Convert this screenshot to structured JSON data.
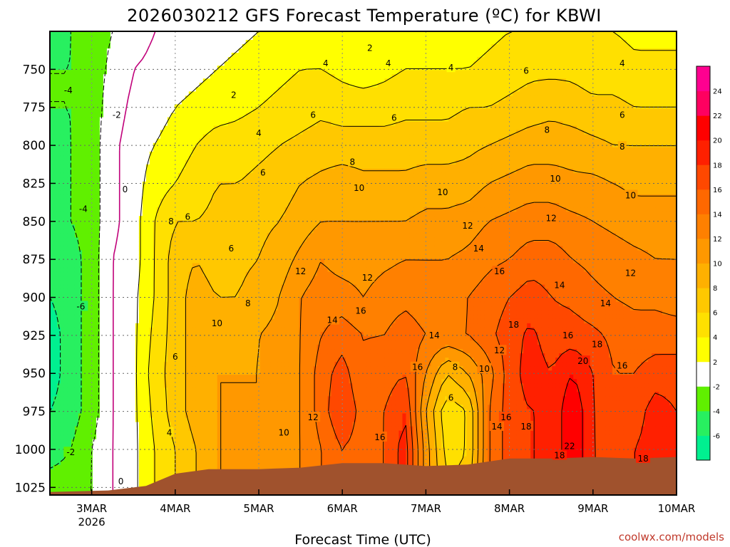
{
  "chart_data": {
    "type": "heatmap",
    "title": "2026030212 GFS Forecast Temperature (ºC) for KBWI",
    "xlabel": "Forecast Time (UTC)",
    "ylabel": "",
    "credit": "coolwx.com/models",
    "x_ticks": [
      {
        "label": "3MAR",
        "sub": "2026",
        "day": 3.0
      },
      {
        "label": "4MAR",
        "sub": "",
        "day": 4.0
      },
      {
        "label": "5MAR",
        "sub": "",
        "day": 5.0
      },
      {
        "label": "6MAR",
        "sub": "",
        "day": 6.0
      },
      {
        "label": "7MAR",
        "sub": "",
        "day": 7.0
      },
      {
        "label": "8MAR",
        "sub": "",
        "day": 8.0
      },
      {
        "label": "9MAR",
        "sub": "",
        "day": 9.0
      },
      {
        "label": "10MAR",
        "sub": "",
        "day": 10.0
      }
    ],
    "xlim": [
      2.5,
      10.0
    ],
    "y_ticks": [
      "750",
      "775",
      "800",
      "825",
      "850",
      "875",
      "900",
      "925",
      "950",
      "975",
      "1000",
      "1025"
    ],
    "ylim": [
      1030,
      725
    ],
    "colorbar": {
      "levels": [
        -8,
        -6,
        -4,
        -2,
        2,
        4,
        6,
        8,
        10,
        12,
        14,
        16,
        18,
        20,
        22,
        24,
        26
      ],
      "labels": [
        "24",
        "22",
        "20",
        "18",
        "16",
        "14",
        "12",
        "10",
        "8",
        "6",
        "4",
        "2",
        "-2",
        "-4",
        "-6"
      ],
      "colors": [
        "#00f090",
        "#28f060",
        "#60f000",
        "#ffffff",
        "#ffff00",
        "#ffe000",
        "#ffc800",
        "#ffb000",
        "#ff9800",
        "#ff8000",
        "#ff6800",
        "#ff4800",
        "#ff2000",
        "#ff0000",
        "#ff0060",
        "#ff0090"
      ]
    },
    "surface": {
      "color": "#a0522d",
      "points": [
        [
          2.5,
          1028
        ],
        [
          3.2,
          1027
        ],
        [
          3.65,
          1024
        ],
        [
          4.0,
          1016
        ],
        [
          4.4,
          1013
        ],
        [
          5.0,
          1013
        ],
        [
          5.5,
          1012
        ],
        [
          6.0,
          1009
        ],
        [
          6.5,
          1009
        ],
        [
          7.0,
          1011
        ],
        [
          7.5,
          1010
        ],
        [
          8.0,
          1006
        ],
        [
          8.5,
          1006
        ],
        [
          9.0,
          1005
        ],
        [
          9.5,
          1006
        ],
        [
          10.0,
          1005
        ]
      ]
    },
    "temperature_field": {
      "pressures": [
        725,
        750,
        775,
        800,
        825,
        850,
        875,
        900,
        925,
        950,
        975,
        1000,
        1025
      ],
      "series": [
        {
          "day": 2.5,
          "temps": [
            -5,
            -4,
            -4,
            -5,
            -5,
            -5,
            -6,
            -6,
            -7,
            -7,
            -6,
            -5,
            -3
          ]
        },
        {
          "day": 2.75,
          "temps": [
            -4,
            -4,
            -4,
            -4,
            -4,
            -4,
            -5,
            -5,
            -5,
            -5,
            -5,
            -4,
            -3
          ]
        },
        {
          "day": 3.0,
          "temps": [
            -3,
            -3,
            -3,
            -3,
            -3,
            -3,
            -3,
            -3,
            -3,
            -3,
            -3,
            -2,
            -2
          ]
        },
        {
          "day": 3.25,
          "temps": [
            -2,
            -1.5,
            -1,
            -0.5,
            -0.5,
            -0.5,
            0,
            0,
            0,
            0,
            0,
            0,
            0
          ]
        },
        {
          "day": 3.5,
          "temps": [
            -1,
            0,
            0.5,
            1,
            1,
            1,
            1,
            1.5,
            1.5,
            1.5,
            1.5,
            1.5,
            1.5
          ]
        },
        {
          "day": 3.75,
          "temps": [
            0,
            0.5,
            1,
            2,
            3,
            4,
            4,
            4,
            4.5,
            5,
            4.5,
            4,
            4
          ]
        },
        {
          "day": 4.0,
          "temps": [
            0.5,
            1,
            2,
            3,
            4,
            6,
            7,
            7,
            7,
            7,
            7,
            6,
            6
          ]
        },
        {
          "day": 4.25,
          "temps": [
            1,
            1.5,
            2.5,
            4,
            5,
            6,
            8,
            9,
            9,
            9,
            9,
            8,
            8
          ]
        },
        {
          "day": 4.5,
          "temps": [
            1,
            2,
            3,
            5,
            6,
            6.5,
            7,
            8,
            9,
            10,
            10,
            10,
            10
          ]
        },
        {
          "day": 4.75,
          "temps": [
            1.5,
            2.5,
            3.5,
            5,
            6,
            7,
            7.5,
            8,
            9,
            10,
            10,
            10,
            10
          ]
        },
        {
          "day": 5.0,
          "temps": [
            2,
            3,
            4,
            5.5,
            6.5,
            7.5,
            8,
            9,
            10,
            10,
            10,
            10,
            10
          ]
        },
        {
          "day": 5.25,
          "temps": [
            2.5,
            3.5,
            4.5,
            6,
            7,
            8,
            9,
            10,
            10.5,
            11,
            11,
            11,
            11
          ]
        },
        {
          "day": 5.5,
          "temps": [
            3,
            4,
            5,
            6.5,
            8,
            9,
            10.5,
            12,
            12,
            12,
            12,
            12,
            12
          ]
        },
        {
          "day": 5.75,
          "temps": [
            3,
            4,
            5.5,
            7,
            8.5,
            10,
            12,
            13,
            14,
            15,
            15,
            14,
            14
          ]
        },
        {
          "day": 6.0,
          "temps": [
            2.5,
            3.5,
            5,
            7,
            9,
            10,
            11,
            13,
            15,
            17,
            18,
            16,
            16
          ]
        },
        {
          "day": 6.25,
          "temps": [
            2,
            3,
            5,
            7,
            8.5,
            10,
            11,
            12,
            14,
            14,
            15,
            15,
            15
          ]
        },
        {
          "day": 6.5,
          "temps": [
            2.5,
            3.5,
            5,
            7,
            8.5,
            10,
            11.5,
            13,
            14,
            15,
            16,
            16,
            16
          ]
        },
        {
          "day": 6.75,
          "temps": [
            3,
            4,
            5.5,
            7,
            8.5,
            10,
            12,
            13.5,
            15,
            16,
            18,
            19,
            19
          ]
        },
        {
          "day": 7.0,
          "temps": [
            3,
            4,
            5.5,
            7,
            9,
            10.5,
            12,
            13,
            14,
            12,
            10,
            11,
            11
          ]
        },
        {
          "day": 7.25,
          "temps": [
            3,
            4,
            5.5,
            7,
            9,
            10.5,
            12,
            13,
            13.5,
            8,
            4.5,
            5,
            6
          ]
        },
        {
          "day": 7.5,
          "temps": [
            3,
            4,
            6,
            7.5,
            9,
            11,
            12.5,
            14,
            14,
            10,
            6,
            6,
            7
          ]
        },
        {
          "day": 7.75,
          "temps": [
            3.5,
            4.5,
            6,
            8,
            10,
            12,
            13.5,
            15,
            15.5,
            13,
            14,
            14,
            14
          ]
        },
        {
          "day": 8.0,
          "temps": [
            4,
            5,
            6.5,
            8.5,
            10.5,
            12.5,
            14,
            16,
            17,
            17,
            17,
            17,
            17
          ]
        },
        {
          "day": 8.25,
          "temps": [
            4,
            5.5,
            7,
            9,
            11,
            13,
            15,
            17,
            18.5,
            19,
            18,
            18,
            18
          ]
        },
        {
          "day": 8.5,
          "temps": [
            4,
            5.5,
            7.5,
            9,
            11,
            13,
            15,
            16,
            17,
            18,
            18,
            18,
            18
          ]
        },
        {
          "day": 8.75,
          "temps": [
            4,
            5.5,
            7,
            9,
            10.5,
            12.5,
            14,
            15.5,
            17,
            20,
            22,
            22,
            22
          ]
        },
        {
          "day": 9.0,
          "temps": [
            4,
            5,
            6.5,
            8.5,
            10.5,
            12,
            13.5,
            14.5,
            16.5,
            18,
            18,
            18,
            18
          ]
        },
        {
          "day": 9.25,
          "temps": [
            4,
            5,
            6.5,
            8,
            10,
            11.5,
            13,
            14,
            15.5,
            16,
            16.5,
            17,
            17
          ]
        },
        {
          "day": 9.5,
          "temps": [
            3.5,
            4.5,
            6,
            8,
            9.5,
            11,
            12.5,
            13.5,
            15,
            16,
            17,
            18,
            18
          ]
        },
        {
          "day": 9.75,
          "temps": [
            3.5,
            4.5,
            6,
            8,
            9.5,
            11,
            12,
            13.5,
            15,
            17,
            19,
            19,
            19
          ]
        },
        {
          "day": 10.0,
          "temps": [
            3.5,
            4.5,
            6,
            8,
            9.5,
            11,
            12,
            13,
            15,
            17,
            18,
            18,
            18
          ]
        }
      ]
    },
    "contour_labels": [
      {
        "text": "-4",
        "day": 2.72,
        "p": 764
      },
      {
        "text": "-2",
        "day": 3.3,
        "p": 780
      },
      {
        "text": "-4",
        "day": 2.9,
        "p": 842
      },
      {
        "text": "-6",
        "day": 2.87,
        "p": 906
      },
      {
        "text": "-2",
        "day": 2.75,
        "p": 1002
      },
      {
        "text": "0",
        "day": 3.4,
        "p": 829
      },
      {
        "text": "0",
        "day": 3.35,
        "p": 1021
      },
      {
        "text": "2",
        "day": 4.7,
        "p": 767
      },
      {
        "text": "2",
        "day": 6.33,
        "p": 736
      },
      {
        "text": "4",
        "day": 5.0,
        "p": 792
      },
      {
        "text": "4",
        "day": 5.8,
        "p": 746
      },
      {
        "text": "4",
        "day": 6.55,
        "p": 746
      },
      {
        "text": "4",
        "day": 7.3,
        "p": 749
      },
      {
        "text": "4",
        "day": 9.35,
        "p": 746
      },
      {
        "text": "4",
        "day": 3.93,
        "p": 989
      },
      {
        "text": "6",
        "day": 5.05,
        "p": 818
      },
      {
        "text": "6",
        "day": 5.65,
        "p": 780
      },
      {
        "text": "6",
        "day": 6.62,
        "p": 782
      },
      {
        "text": "6",
        "day": 8.2,
        "p": 751
      },
      {
        "text": "6",
        "day": 9.35,
        "p": 780
      },
      {
        "text": "6",
        "day": 4.15,
        "p": 847
      },
      {
        "text": "6",
        "day": 4.67,
        "p": 868
      },
      {
        "text": "6",
        "day": 4.0,
        "p": 939
      },
      {
        "text": "6",
        "day": 7.3,
        "p": 966
      },
      {
        "text": "8",
        "day": 3.95,
        "p": 850
      },
      {
        "text": "8",
        "day": 4.87,
        "p": 904
      },
      {
        "text": "8",
        "day": 6.12,
        "p": 811
      },
      {
        "text": "8",
        "day": 8.45,
        "p": 790
      },
      {
        "text": "8",
        "day": 9.35,
        "p": 801
      },
      {
        "text": "8",
        "day": 7.35,
        "p": 946
      },
      {
        "text": "10",
        "day": 4.5,
        "p": 917
      },
      {
        "text": "10",
        "day": 5.3,
        "p": 989
      },
      {
        "text": "10",
        "day": 6.2,
        "p": 828
      },
      {
        "text": "10",
        "day": 7.2,
        "p": 831
      },
      {
        "text": "10",
        "day": 8.55,
        "p": 822
      },
      {
        "text": "10",
        "day": 9.45,
        "p": 833
      },
      {
        "text": "10",
        "day": 7.7,
        "p": 947
      },
      {
        "text": "12",
        "day": 5.5,
        "p": 883
      },
      {
        "text": "12",
        "day": 6.3,
        "p": 887
      },
      {
        "text": "12",
        "day": 7.5,
        "p": 853
      },
      {
        "text": "12",
        "day": 8.5,
        "p": 848
      },
      {
        "text": "12",
        "day": 9.45,
        "p": 884
      },
      {
        "text": "12",
        "day": 5.65,
        "p": 979
      },
      {
        "text": "12",
        "day": 7.88,
        "p": 935
      },
      {
        "text": "14",
        "day": 5.88,
        "p": 915
      },
      {
        "text": "14",
        "day": 7.1,
        "p": 925
      },
      {
        "text": "14",
        "day": 7.63,
        "p": 868
      },
      {
        "text": "14",
        "day": 8.6,
        "p": 892
      },
      {
        "text": "14",
        "day": 9.15,
        "p": 904
      },
      {
        "text": "14",
        "day": 7.85,
        "p": 985
      },
      {
        "text": "16",
        "day": 6.22,
        "p": 909
      },
      {
        "text": "16",
        "day": 6.9,
        "p": 946
      },
      {
        "text": "16",
        "day": 7.88,
        "p": 883
      },
      {
        "text": "16",
        "day": 8.7,
        "p": 925
      },
      {
        "text": "16",
        "day": 9.35,
        "p": 945
      },
      {
        "text": "16",
        "day": 6.45,
        "p": 992
      },
      {
        "text": "16",
        "day": 7.96,
        "p": 979
      },
      {
        "text": "18",
        "day": 8.05,
        "p": 918
      },
      {
        "text": "18",
        "day": 9.05,
        "p": 931
      },
      {
        "text": "18",
        "day": 8.2,
        "p": 985
      },
      {
        "text": "18",
        "day": 8.6,
        "p": 1004
      },
      {
        "text": "18",
        "day": 9.6,
        "p": 1006
      },
      {
        "text": "20",
        "day": 8.88,
        "p": 942
      },
      {
        "text": "22",
        "day": 8.72,
        "p": 998
      }
    ]
  }
}
